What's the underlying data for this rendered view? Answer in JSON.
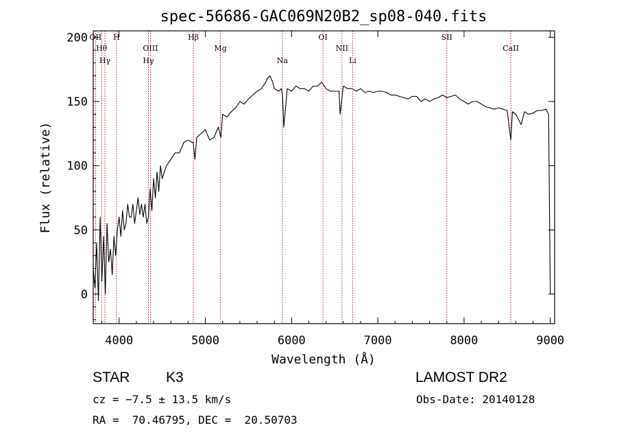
{
  "chart_data": {
    "type": "line",
    "title": "spec-56686-GAC069N20B2_sp08-040.fits",
    "xlabel": "Wavelength (Å)",
    "ylabel": "Flux (relative)",
    "xlim": [
      3700,
      9050
    ],
    "ylim": [
      -23,
      205
    ],
    "x_ticks": [
      "4000",
      "5000",
      "6000",
      "7000",
      "8000",
      "9000"
    ],
    "y_ticks": [
      "0",
      "50",
      "100",
      "150",
      "200"
    ],
    "grid": false,
    "series": [
      {
        "values_x": [
          3700,
          3720,
          3740,
          3760,
          3780,
          3800,
          3820,
          3840,
          3860,
          3880,
          3900,
          3920,
          3940,
          3960,
          3980,
          4000,
          4020,
          4040,
          4060,
          4080,
          4100,
          4120,
          4140,
          4160,
          4180,
          4200,
          4220,
          4240,
          4260,
          4280,
          4300,
          4320,
          4340,
          4360,
          4380,
          4400,
          4420,
          4440,
          4460,
          4480,
          4500,
          4550,
          4600,
          4650,
          4700,
          4750,
          4800,
          4850,
          4860,
          4880,
          4900,
          4950,
          5000,
          5050,
          5100,
          5150,
          5180,
          5200,
          5250,
          5300,
          5350,
          5400,
          5450,
          5500,
          5550,
          5600,
          5650,
          5700,
          5720,
          5750,
          5780,
          5800,
          5850,
          5880,
          5895,
          5910,
          5950,
          6000,
          6050,
          6100,
          6150,
          6200,
          6250,
          6300,
          6350,
          6400,
          6450,
          6500,
          6550,
          6563,
          6600,
          6650,
          6700,
          6750,
          6800,
          6850,
          6900,
          6950,
          7000,
          7050,
          7100,
          7150,
          7200,
          7250,
          7300,
          7350,
          7400,
          7450,
          7500,
          7550,
          7600,
          7650,
          7700,
          7750,
          7800,
          7850,
          7900,
          7950,
          8000,
          8050,
          8100,
          8150,
          8200,
          8250,
          8300,
          8350,
          8400,
          8450,
          8500,
          8542,
          8560,
          8600,
          8662,
          8700,
          8750,
          8800,
          8850,
          8900,
          8950,
          8980,
          9000
        ],
        "values_y": [
          20,
          5,
          40,
          -5,
          60,
          10,
          45,
          0,
          55,
          25,
          35,
          15,
          45,
          30,
          50,
          60,
          45,
          65,
          50,
          55,
          70,
          60,
          60,
          70,
          55,
          65,
          75,
          62,
          70,
          60,
          70,
          55,
          60,
          82,
          65,
          90,
          75,
          95,
          80,
          100,
          90,
          100,
          105,
          110,
          110,
          118,
          120,
          118,
          118,
          105,
          122,
          125,
          128,
          120,
          122,
          130,
          122,
          140,
          138,
          142,
          145,
          150,
          148,
          152,
          155,
          158,
          160,
          165,
          168,
          170,
          165,
          160,
          158,
          160,
          155,
          130,
          160,
          158,
          162,
          160,
          160,
          158,
          162,
          162,
          165,
          160,
          158,
          158,
          158,
          140,
          162,
          160,
          160,
          158,
          160,
          157,
          158,
          157,
          158,
          158,
          157,
          155,
          155,
          154,
          153,
          152,
          154,
          154,
          150,
          152,
          150,
          152,
          153,
          155,
          153,
          154,
          155,
          152,
          150,
          148,
          150,
          150,
          148,
          146,
          145,
          144,
          145,
          144,
          143,
          120,
          142,
          140,
          132,
          142,
          140,
          141,
          143,
          143,
          144,
          140,
          0
        ],
        "color": "#000000"
      }
    ],
    "spectral_lines": [
      {
        "label": "OII",
        "x": 3727
      },
      {
        "label": "Hθ",
        "x": 3797
      },
      {
        "label": "Hγ",
        "x": 3835
      },
      {
        "label": "H",
        "x": 3970
      },
      {
        "label": "OIII",
        "x": 4363
      },
      {
        "label": "Hγ",
        "x": 4340
      },
      {
        "label": "Hβ",
        "x": 4861
      },
      {
        "label": "Mg",
        "x": 5175
      },
      {
        "label": "Na",
        "x": 5893
      },
      {
        "label": "OI",
        "x": 6364
      },
      {
        "label": "NII",
        "x": 6584
      },
      {
        "label": "Li",
        "x": 6708
      },
      {
        "label": "SII",
        "x": 7800
      },
      {
        "label": "CaII",
        "x": 8542
      }
    ]
  },
  "info": {
    "object_class": "STAR",
    "subclass": "K3",
    "survey": "LAMOST DR2",
    "velocity": "cz = −7.5 ± 13.5 km/s",
    "obs_date": "Obs-Date: 20140128",
    "coordinates": "RA =  70.46795, DEC =  20.50703"
  }
}
